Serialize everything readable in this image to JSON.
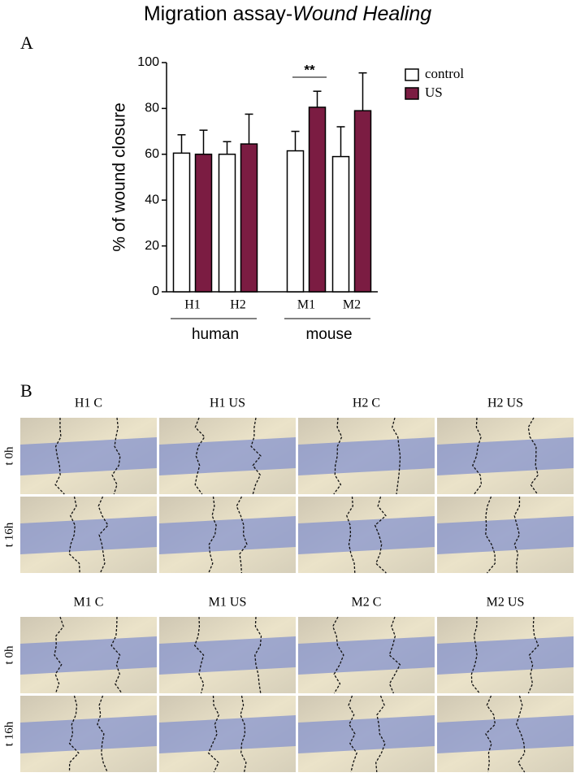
{
  "title_parts": [
    "Migration assay-",
    "Wound Healing"
  ],
  "panel_labels": [
    "A",
    "B"
  ],
  "chart_data": {
    "type": "bar",
    "ylabel": "% of wound closure",
    "groups": [
      {
        "name": "human",
        "categories": [
          "H1",
          "H2"
        ]
      },
      {
        "name": "mouse",
        "categories": [
          "M1",
          "M2"
        ]
      }
    ],
    "series": [
      {
        "name": "control",
        "color": "#ffffff",
        "values": [
          60.5,
          60,
          61.5,
          59
        ],
        "errors": [
          8,
          5.5,
          8.5,
          13
        ]
      },
      {
        "name": "US",
        "color": "#7b1c42",
        "values": [
          60,
          64.5,
          80.5,
          79
        ],
        "errors": [
          10.5,
          13,
          7,
          16.5
        ]
      }
    ],
    "ylim": [
      0,
      100
    ],
    "yticks": [
      0,
      20,
      40,
      60,
      80,
      100
    ],
    "annotation": "**",
    "legend": "upper right"
  },
  "images": {
    "row_labels": [
      "t 0h",
      "t 16h"
    ],
    "blocks": [
      [
        "H1 C",
        "H1 US",
        "H2 C",
        "H2 US"
      ],
      [
        "M1 C",
        "M1 US",
        "M2 C",
        "M2 US"
      ]
    ]
  }
}
